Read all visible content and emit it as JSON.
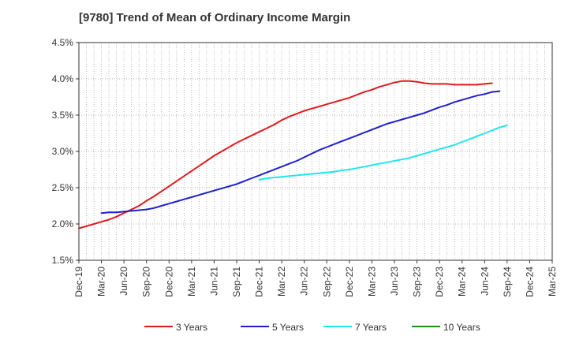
{
  "chart_data": {
    "type": "line",
    "title": "[9780]  Trend of Mean of Ordinary Income Margin",
    "xlabel": "",
    "ylabel": "",
    "x_ticks": [
      "Dec-19",
      "Mar-20",
      "Jun-20",
      "Sep-20",
      "Dec-20",
      "Mar-21",
      "Jun-21",
      "Sep-21",
      "Dec-21",
      "Mar-22",
      "Jun-22",
      "Sep-22",
      "Dec-22",
      "Mar-23",
      "Jun-23",
      "Sep-23",
      "Dec-23",
      "Mar-24",
      "Jun-24",
      "Sep-24",
      "Dec-24",
      "Mar-25"
    ],
    "y_ticks": [
      "1.5%",
      "2.0%",
      "2.5%",
      "3.0%",
      "3.5%",
      "4.0%",
      "4.5%"
    ],
    "ylim": [
      1.5,
      4.5
    ],
    "grid": true,
    "legend_position": "bottom",
    "series": [
      {
        "name": "3 Years",
        "color": "#e31a1c",
        "points": [
          [
            "Dec-19",
            1.94
          ],
          [
            "Jan-20",
            1.97
          ],
          [
            "Feb-20",
            2.0
          ],
          [
            "Mar-20",
            2.03
          ],
          [
            "Apr-20",
            2.06
          ],
          [
            "May-20",
            2.1
          ],
          [
            "Jun-20",
            2.15
          ],
          [
            "Jul-20",
            2.2
          ],
          [
            "Aug-20",
            2.25
          ],
          [
            "Sep-20",
            2.32
          ],
          [
            "Oct-20",
            2.38
          ],
          [
            "Nov-20",
            2.45
          ],
          [
            "Dec-20",
            2.52
          ],
          [
            "Jan-21",
            2.59
          ],
          [
            "Feb-21",
            2.66
          ],
          [
            "Mar-21",
            2.73
          ],
          [
            "Apr-21",
            2.8
          ],
          [
            "May-21",
            2.87
          ],
          [
            "Jun-21",
            2.94
          ],
          [
            "Jul-21",
            3.0
          ],
          [
            "Aug-21",
            3.06
          ],
          [
            "Sep-21",
            3.12
          ],
          [
            "Oct-21",
            3.17
          ],
          [
            "Nov-21",
            3.22
          ],
          [
            "Dec-21",
            3.27
          ],
          [
            "Jan-22",
            3.32
          ],
          [
            "Feb-22",
            3.37
          ],
          [
            "Mar-22",
            3.43
          ],
          [
            "Apr-22",
            3.48
          ],
          [
            "May-22",
            3.52
          ],
          [
            "Jun-22",
            3.56
          ],
          [
            "Jul-22",
            3.59
          ],
          [
            "Aug-22",
            3.62
          ],
          [
            "Sep-22",
            3.65
          ],
          [
            "Oct-22",
            3.68
          ],
          [
            "Nov-22",
            3.71
          ],
          [
            "Dec-22",
            3.74
          ],
          [
            "Jan-23",
            3.78
          ],
          [
            "Feb-23",
            3.82
          ],
          [
            "Mar-23",
            3.85
          ],
          [
            "Apr-23",
            3.89
          ],
          [
            "May-23",
            3.92
          ],
          [
            "Jun-23",
            3.95
          ],
          [
            "Jul-23",
            3.97
          ],
          [
            "Aug-23",
            3.97
          ],
          [
            "Sep-23",
            3.96
          ],
          [
            "Oct-23",
            3.94
          ],
          [
            "Nov-23",
            3.93
          ],
          [
            "Dec-23",
            3.93
          ],
          [
            "Jan-24",
            3.93
          ],
          [
            "Feb-24",
            3.92
          ],
          [
            "Mar-24",
            3.92
          ],
          [
            "Apr-24",
            3.92
          ],
          [
            "May-24",
            3.92
          ],
          [
            "Jun-24",
            3.93
          ],
          [
            "Jul-24",
            3.94
          ]
        ]
      },
      {
        "name": "5 Years",
        "color": "#1f1fcf",
        "points": [
          [
            "Mar-20",
            2.15
          ],
          [
            "Apr-20",
            2.16
          ],
          [
            "May-20",
            2.16
          ],
          [
            "Jun-20",
            2.17
          ],
          [
            "Jul-20",
            2.18
          ],
          [
            "Aug-20",
            2.19
          ],
          [
            "Sep-20",
            2.2
          ],
          [
            "Oct-20",
            2.22
          ],
          [
            "Nov-20",
            2.25
          ],
          [
            "Dec-20",
            2.28
          ],
          [
            "Jan-21",
            2.31
          ],
          [
            "Feb-21",
            2.34
          ],
          [
            "Mar-21",
            2.37
          ],
          [
            "Apr-21",
            2.4
          ],
          [
            "May-21",
            2.43
          ],
          [
            "Jun-21",
            2.46
          ],
          [
            "Jul-21",
            2.49
          ],
          [
            "Aug-21",
            2.52
          ],
          [
            "Sep-21",
            2.55
          ],
          [
            "Oct-21",
            2.59
          ],
          [
            "Nov-21",
            2.63
          ],
          [
            "Dec-21",
            2.67
          ],
          [
            "Jan-22",
            2.71
          ],
          [
            "Feb-22",
            2.75
          ],
          [
            "Mar-22",
            2.79
          ],
          [
            "Apr-22",
            2.83
          ],
          [
            "May-22",
            2.87
          ],
          [
            "Jun-22",
            2.92
          ],
          [
            "Jul-22",
            2.97
          ],
          [
            "Aug-22",
            3.02
          ],
          [
            "Sep-22",
            3.06
          ],
          [
            "Oct-22",
            3.1
          ],
          [
            "Nov-22",
            3.14
          ],
          [
            "Dec-22",
            3.18
          ],
          [
            "Jan-23",
            3.22
          ],
          [
            "Feb-23",
            3.26
          ],
          [
            "Mar-23",
            3.3
          ],
          [
            "Apr-23",
            3.34
          ],
          [
            "May-23",
            3.38
          ],
          [
            "Jun-23",
            3.41
          ],
          [
            "Jul-23",
            3.44
          ],
          [
            "Aug-23",
            3.47
          ],
          [
            "Sep-23",
            3.5
          ],
          [
            "Oct-23",
            3.53
          ],
          [
            "Nov-23",
            3.57
          ],
          [
            "Dec-23",
            3.61
          ],
          [
            "Jan-24",
            3.64
          ],
          [
            "Feb-24",
            3.68
          ],
          [
            "Mar-24",
            3.71
          ],
          [
            "Apr-24",
            3.74
          ],
          [
            "May-24",
            3.77
          ],
          [
            "Jun-24",
            3.79
          ],
          [
            "Jul-24",
            3.82
          ],
          [
            "Aug-24",
            3.83
          ]
        ]
      },
      {
        "name": "7 Years",
        "color": "#22e5ee",
        "points": [
          [
            "Dec-21",
            2.61
          ],
          [
            "Jan-22",
            2.63
          ],
          [
            "Feb-22",
            2.64
          ],
          [
            "Mar-22",
            2.65
          ],
          [
            "Apr-22",
            2.66
          ],
          [
            "May-22",
            2.67
          ],
          [
            "Jun-22",
            2.68
          ],
          [
            "Jul-22",
            2.69
          ],
          [
            "Aug-22",
            2.7
          ],
          [
            "Sep-22",
            2.71
          ],
          [
            "Oct-22",
            2.72
          ],
          [
            "Nov-22",
            2.74
          ],
          [
            "Dec-22",
            2.75
          ],
          [
            "Jan-23",
            2.77
          ],
          [
            "Feb-23",
            2.79
          ],
          [
            "Mar-23",
            2.81
          ],
          [
            "Apr-23",
            2.83
          ],
          [
            "May-23",
            2.85
          ],
          [
            "Jun-23",
            2.87
          ],
          [
            "Jul-23",
            2.89
          ],
          [
            "Aug-23",
            2.91
          ],
          [
            "Sep-23",
            2.94
          ],
          [
            "Oct-23",
            2.97
          ],
          [
            "Nov-23",
            3.0
          ],
          [
            "Dec-23",
            3.03
          ],
          [
            "Jan-24",
            3.06
          ],
          [
            "Feb-24",
            3.09
          ],
          [
            "Mar-24",
            3.13
          ],
          [
            "Apr-24",
            3.17
          ],
          [
            "May-24",
            3.21
          ],
          [
            "Jun-24",
            3.25
          ],
          [
            "Jul-24",
            3.29
          ],
          [
            "Aug-24",
            3.33
          ],
          [
            "Sep-24",
            3.36
          ]
        ]
      },
      {
        "name": "10 Years",
        "color": "#1a8c1a",
        "points": []
      }
    ]
  }
}
